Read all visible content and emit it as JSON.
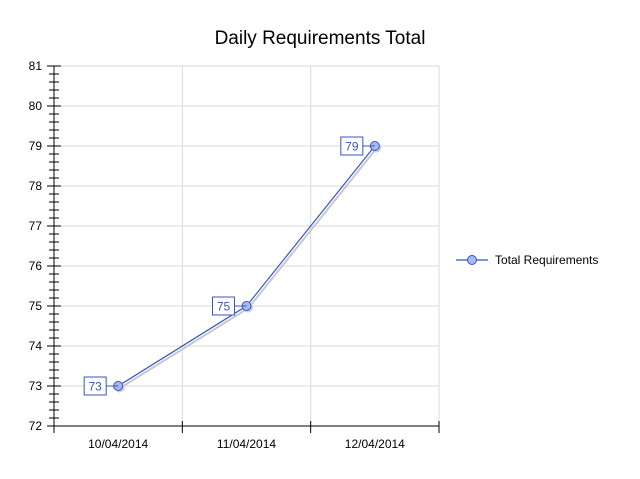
{
  "chart_data": {
    "type": "line",
    "title": "Daily Requirements Total",
    "xlabel": "",
    "ylabel": "",
    "categories": [
      "10/04/2014",
      "11/04/2014",
      "12/04/2014"
    ],
    "series": [
      {
        "name": "Total Requirements",
        "values": [
          73,
          75,
          79
        ],
        "color": "#3355cc"
      }
    ],
    "ylim": [
      72,
      81
    ],
    "yticks": [
      "72",
      "73",
      "74",
      "75",
      "76",
      "77",
      "78",
      "79",
      "80",
      "81"
    ],
    "data_labels": [
      "73",
      "75",
      "79"
    ],
    "grid": true,
    "legend_position": "right"
  }
}
